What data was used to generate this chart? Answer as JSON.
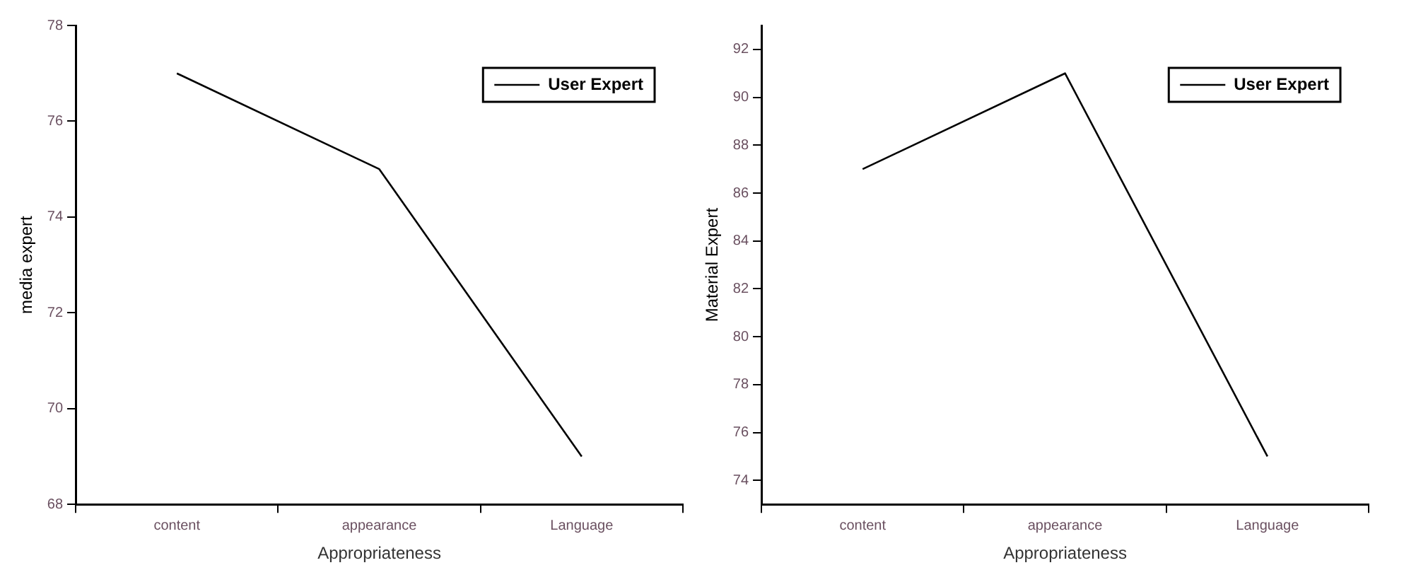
{
  "chart_data": [
    {
      "type": "line",
      "categories": [
        "content",
        "appearance",
        "Language"
      ],
      "xlabel": "Appropriateness",
      "ylabel": "media expert",
      "ylim": [
        68,
        78
      ],
      "yticks": [
        68,
        70,
        72,
        74,
        76,
        78
      ],
      "legend": "top right",
      "grid": false,
      "marker": "none",
      "series": [
        {
          "name": "User Expert",
          "color": "#000000",
          "values": [
            77,
            75,
            69
          ]
        }
      ]
    },
    {
      "type": "line",
      "categories": [
        "content",
        "appearance",
        "Language"
      ],
      "xlabel": "Appropriateness",
      "ylabel": "Material Expert",
      "ylim": [
        73,
        93
      ],
      "yticks": [
        74,
        76,
        78,
        80,
        82,
        84,
        86,
        88,
        90,
        92
      ],
      "legend": "top right",
      "grid": false,
      "marker": "none",
      "series": [
        {
          "name": "User Expert",
          "color": "#000000",
          "values": [
            87,
            91,
            75
          ]
        }
      ]
    }
  ]
}
